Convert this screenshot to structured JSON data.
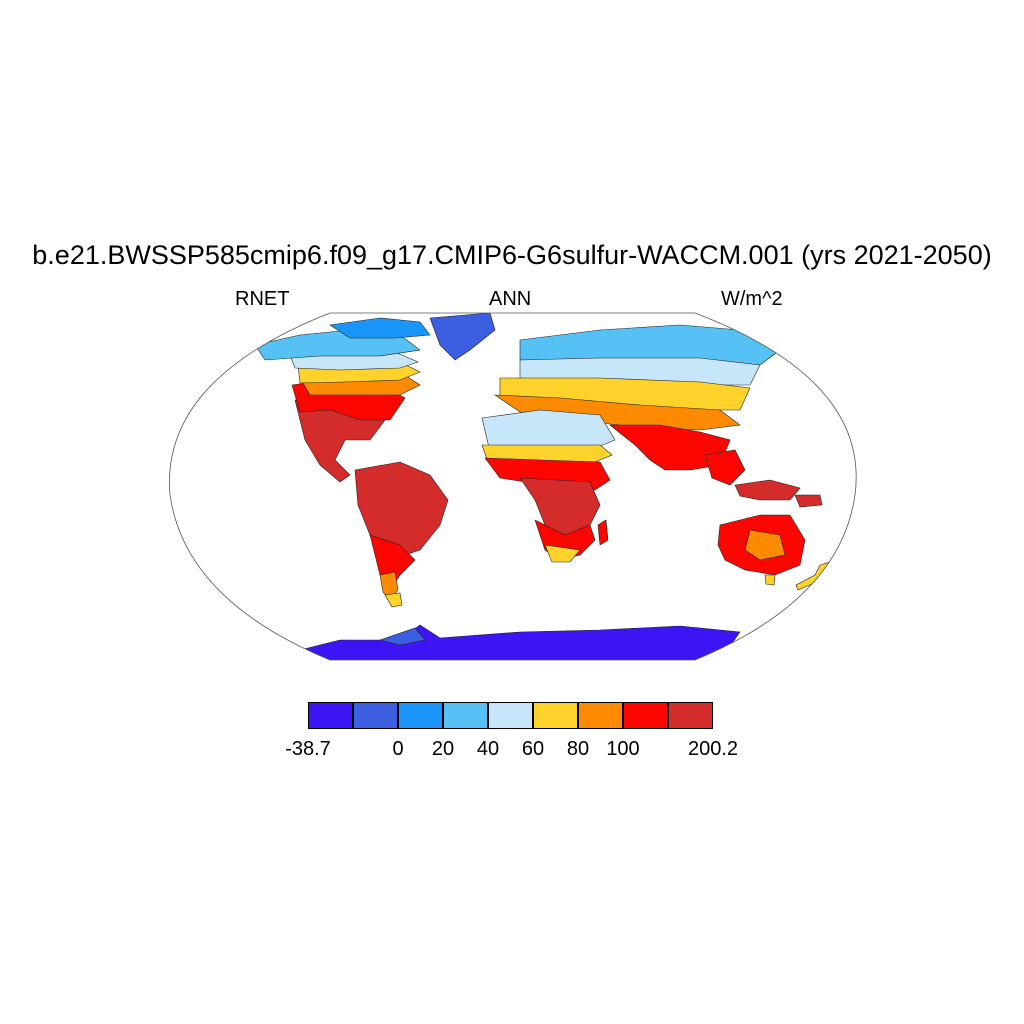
{
  "title": "b.e21.BWSSP585cmip6.f09_g17.CMIP6-G6sulfur-WACCM.001 (yrs 2021-2050)",
  "left_label": "RNET",
  "center_label": "ANN",
  "right_label": "W/m^2",
  "colorbar": {
    "colors": [
      "#3d14f3",
      "#3c5ee0",
      "#1a96fb",
      "#56c1f5",
      "#c7e6f9",
      "#fdd22b",
      "#fd8a00",
      "#fd0500",
      "#d42b2b"
    ],
    "labels": [
      "-38.7",
      "",
      "0",
      "20",
      "40",
      "60",
      "80",
      "100",
      "",
      "200.2"
    ]
  },
  "map": {
    "projection": "Robinson",
    "field": "Annual mean net surface radiation over land (W/m^2)",
    "regions": [
      {
        "name": "Greenland",
        "color": "#3c5ee0"
      },
      {
        "name": "Antarctica",
        "color": "#3d14f3"
      },
      {
        "name": "Canadian Arctic",
        "color": "#56c1f5"
      },
      {
        "name": "Northern Russia",
        "color": "#56c1f5"
      },
      {
        "name": "Northern Africa",
        "color": "#c7e6f9"
      },
      {
        "name": "Amazon basin",
        "color": "#d42b2b"
      },
      {
        "name": "Central Africa",
        "color": "#d42b2b"
      },
      {
        "name": "Australia",
        "color": "#fd0500"
      }
    ]
  }
}
